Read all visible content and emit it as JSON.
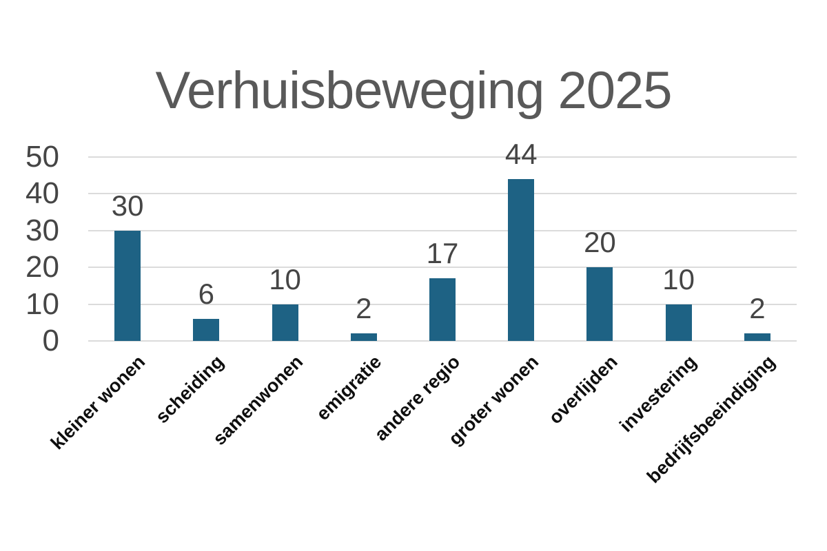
{
  "chart_data": {
    "type": "bar",
    "title": "Verhuisbeweging 2025",
    "categories": [
      "kleiner wonen",
      "scheiding",
      "samenwonen",
      "emigratie",
      "andere regio",
      "groter wonen",
      "overlijden",
      "investering",
      "bedrijfsbeeindiging"
    ],
    "values": [
      30,
      6,
      10,
      2,
      17,
      44,
      20,
      10,
      2
    ],
    "data_labels": [
      "30",
      "6",
      "10",
      "2",
      "17",
      "44",
      "20",
      "10",
      "2"
    ],
    "yticks": [
      0,
      10,
      20,
      30,
      40,
      50
    ],
    "ytick_labels": [
      "0",
      "10",
      "20",
      "30",
      "40",
      "50"
    ],
    "ylim": [
      0,
      50
    ],
    "xlabel": "",
    "ylabel": "",
    "grid": "horizontal",
    "legend": "none",
    "x_label_rotation_deg": -45,
    "colors": {
      "bar": "#1E6284",
      "gridline": "#DBDBDB",
      "title": "#595959",
      "y_tick_text": "#454545",
      "data_label_text": "#454545",
      "x_tick_text": "#0f0f0f",
      "background": "#ffffff"
    }
  }
}
